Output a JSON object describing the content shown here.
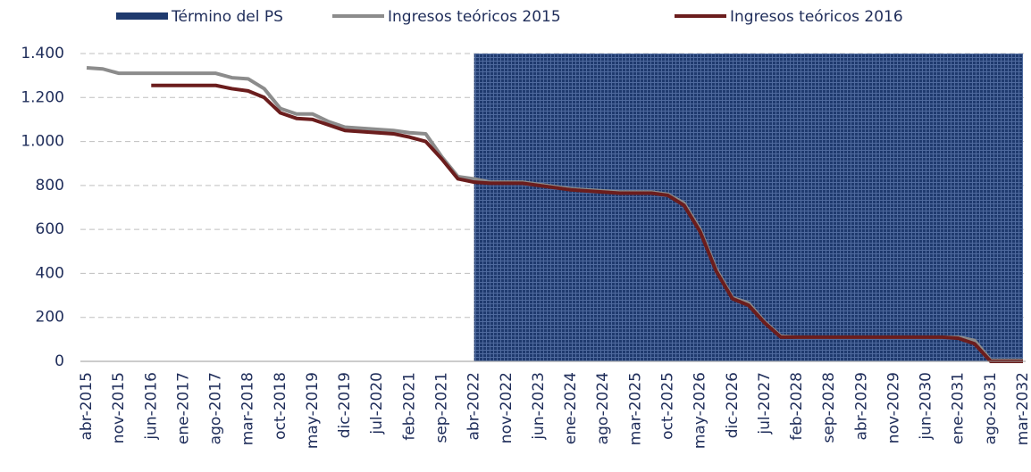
{
  "chart_data": {
    "type": "line",
    "categories": [
      "abr-2015",
      null,
      "nov-2015",
      null,
      "jun-2016",
      null,
      "ene-2017",
      null,
      "ago-2017",
      null,
      "mar-2018",
      null,
      "oct-2018",
      null,
      "may-2019",
      null,
      "dic-2019",
      null,
      "jul-2020",
      null,
      "feb-2021",
      null,
      "sep-2021",
      null,
      "abr-2022",
      null,
      "nov-2022",
      null,
      "jun-2023",
      null,
      "ene-2024",
      null,
      "ago-2024",
      null,
      "mar-2025",
      null,
      "oct-2025",
      null,
      "may-2026",
      null,
      "dic-2026",
      null,
      "jul-2027",
      null,
      "feb-2028",
      null,
      "sep-2028",
      null,
      "abr-2029",
      null,
      "nov-2029",
      null,
      "jun-2030",
      null,
      "ene-2031",
      null,
      "ago-2031",
      null,
      "mar-2032"
    ],
    "series": [
      {
        "name": "Término del PS",
        "color": "#1f3a6e",
        "style": "area",
        "values": [
          null,
          null,
          null,
          null,
          null,
          null,
          null,
          null,
          null,
          null,
          null,
          null,
          null,
          null,
          null,
          null,
          null,
          null,
          null,
          null,
          null,
          null,
          null,
          null,
          1400,
          1400,
          1400,
          1400,
          1400,
          1400,
          1400,
          1400,
          1400,
          1400,
          1400,
          1400,
          1400,
          1400,
          1400,
          1400,
          1400,
          1400,
          1400,
          1400,
          1400,
          1400,
          1400,
          1400,
          1400,
          1400,
          1400,
          1400,
          1400,
          1400,
          1400,
          1400,
          1400,
          1400,
          1400
        ]
      },
      {
        "name": "Ingresos teóricos 2015",
        "color": "#8c8c8c",
        "style": "line",
        "values": [
          1335,
          1330,
          1310,
          1310,
          1310,
          1310,
          1310,
          1310,
          1310,
          1290,
          1285,
          1240,
          1150,
          1125,
          1125,
          1090,
          1065,
          1060,
          1055,
          1050,
          1040,
          1035,
          930,
          840,
          830,
          815,
          815,
          815,
          805,
          795,
          785,
          780,
          775,
          770,
          770,
          770,
          760,
          720,
          600,
          420,
          290,
          265,
          180,
          115,
          110,
          110,
          110,
          110,
          110,
          110,
          110,
          110,
          110,
          110,
          110,
          95,
          5,
          5,
          5
        ]
      },
      {
        "name": "Ingresos teóricos 2016",
        "color": "#6b1d1d",
        "style": "line",
        "values": [
          null,
          null,
          null,
          null,
          1255,
          1255,
          1255,
          1255,
          1255,
          1240,
          1230,
          1200,
          1130,
          1105,
          1100,
          1075,
          1050,
          1045,
          1040,
          1035,
          1020,
          1000,
          920,
          830,
          815,
          810,
          810,
          810,
          800,
          790,
          780,
          775,
          770,
          765,
          765,
          765,
          755,
          710,
          590,
          410,
          285,
          255,
          175,
          110,
          110,
          110,
          110,
          110,
          110,
          110,
          110,
          110,
          110,
          110,
          105,
          80,
          0,
          0,
          0
        ]
      }
    ],
    "ylim": [
      0,
      1400
    ],
    "yticks": [
      0,
      200,
      400,
      600,
      800,
      {
        "value": 1000,
        "label": "1.000"
      },
      {
        "value": 1200,
        "label": "1.200"
      },
      {
        "value": 1400,
        "label": "1.400"
      }
    ],
    "grid": true,
    "legend": "top"
  }
}
